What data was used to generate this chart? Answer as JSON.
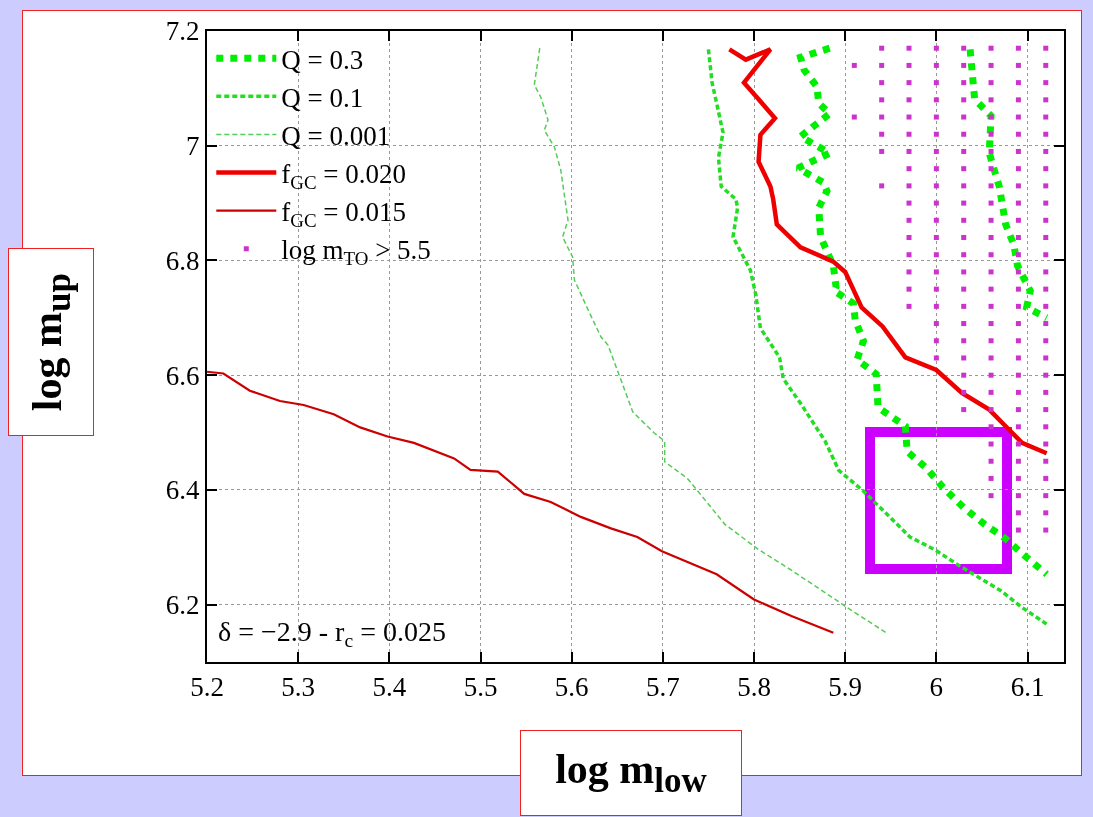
{
  "chart_data": {
    "type": "line",
    "xlabel": "log m$_{low}$",
    "ylabel": "log m$_{up}$",
    "xlim": [
      5.2,
      6.14
    ],
    "ylim": [
      6.1,
      7.2
    ],
    "xticks": [
      5.2,
      5.3,
      5.4,
      5.5,
      5.6,
      5.7,
      5.8,
      5.9,
      6,
      6.1
    ],
    "yticks": [
      6.2,
      6.4,
      6.6,
      6.8,
      7,
      7.2
    ],
    "grid": true,
    "legend": "top left",
    "annotations": [
      "δ = −2.9 - r$_{c}$ = 0.025"
    ],
    "series": [
      {
        "name": "Q = 0.3",
        "color": "#00ee00",
        "line_style": "dotted",
        "x": [
          5.883,
          5.851,
          5.855,
          5.869,
          5.871,
          5.883,
          5.851,
          5.883,
          5.848,
          5.876,
          5.88,
          5.871,
          5.873,
          5.887,
          5.89,
          5.888,
          5.909,
          5.911,
          5.92,
          5.913,
          5.934,
          5.936,
          5.966,
          5.968,
          5.989,
          6.007,
          6.03,
          6.053,
          6.076,
          6.094,
          6.121,
          null,
          6.037,
          6.042,
          6.06,
          6.058,
          6.069,
          6.076,
          6.085,
          6.089,
          6.103,
          6.099,
          6.121
        ],
        "values": [
          7.17,
          7.154,
          7.132,
          7.103,
          7.074,
          7.056,
          7.016,
          6.987,
          6.961,
          6.936,
          6.921,
          6.892,
          6.841,
          6.791,
          6.754,
          6.747,
          6.725,
          6.696,
          6.66,
          6.627,
          6.602,
          6.544,
          6.511,
          6.467,
          6.438,
          6.405,
          6.369,
          6.34,
          6.315,
          6.289,
          6.253,
          null,
          7.168,
          7.081,
          7.052,
          6.987,
          6.929,
          6.863,
          6.827,
          6.791,
          6.747,
          6.718,
          6.7
        ]
      },
      {
        "name": "Q = 0.1",
        "color": "#22dd22",
        "line_style": "dashed",
        "x": [
          5.75,
          5.754,
          5.759,
          5.766,
          5.761,
          5.764,
          5.78,
          5.782,
          5.777,
          5.796,
          5.802,
          5.807,
          5.828,
          5.832,
          5.851,
          5.878,
          5.893,
          5.92,
          5.943,
          5.971,
          5.998,
          6.026,
          6.071,
          6.094,
          6.121
        ],
        "values": [
          7.168,
          7.11,
          7.074,
          7.023,
          6.979,
          6.929,
          6.907,
          6.892,
          6.841,
          6.783,
          6.74,
          6.682,
          6.631,
          6.594,
          6.551,
          6.485,
          6.434,
          6.398,
          6.362,
          6.318,
          6.296,
          6.267,
          6.224,
          6.195,
          6.166
        ]
      },
      {
        "name": "Q = 0.001",
        "color": "#55cc55",
        "line_style": "dashed",
        "x": [
          5.565,
          5.559,
          5.566,
          5.574,
          5.57,
          5.581,
          5.588,
          5.596,
          5.59,
          5.601,
          5.603,
          5.618,
          5.632,
          5.64,
          5.667,
          5.69,
          5.702,
          5.702,
          5.727,
          5.768,
          5.805,
          5.841,
          5.892,
          5.902,
          5.945
        ],
        "values": [
          7.17,
          7.106,
          7.085,
          7.045,
          7.027,
          6.998,
          6.958,
          6.87,
          6.841,
          6.806,
          6.766,
          6.714,
          6.667,
          6.652,
          6.536,
          6.5,
          6.485,
          6.449,
          6.42,
          6.34,
          6.296,
          6.26,
          6.206,
          6.195,
          6.151
        ]
      },
      {
        "name": "f$_{GC}$ = 0.020",
        "color": "#ee0000",
        "line_style": "solid",
        "x": [
          5.773,
          5.791,
          5.818,
          5.789,
          5.805,
          5.823,
          5.807,
          5.805,
          5.818,
          5.821,
          5.825,
          5.851,
          5.887,
          5.9,
          5.918,
          5.941,
          5.966,
          6,
          6.028,
          6.058,
          6.076,
          6.094,
          6.121
        ],
        "values": [
          7.168,
          7.15,
          7.168,
          7.11,
          7.081,
          7.048,
          7.019,
          6.972,
          6.929,
          6.907,
          6.863,
          6.823,
          6.798,
          6.78,
          6.718,
          6.685,
          6.631,
          6.609,
          6.569,
          6.54,
          6.511,
          6.482,
          6.464
        ]
      },
      {
        "name": "f$_{GC}$ = 0.015",
        "color": "#cc0000",
        "line_style": "solid",
        "x": [
          5.2,
          5.218,
          5.247,
          5.28,
          5.306,
          5.339,
          5.368,
          5.398,
          5.427,
          5.471,
          5.489,
          5.519,
          5.548,
          5.577,
          5.61,
          5.643,
          5.672,
          5.699,
          5.759,
          5.8,
          5.841,
          5.887
        ],
        "values": [
          6.606,
          6.603,
          6.573,
          6.555,
          6.548,
          6.532,
          6.509,
          6.493,
          6.482,
          6.455,
          6.435,
          6.432,
          6.393,
          6.379,
          6.353,
          6.333,
          6.318,
          6.293,
          6.253,
          6.209,
          6.18,
          6.151
        ]
      },
      {
        "name": "log m$_{TO}$ > 5.5",
        "type": "scatter",
        "marker": "square",
        "color": "#cc33cc",
        "x": [
          5.91,
          5.91,
          5.94,
          5.94,
          5.94,
          5.94,
          5.94,
          5.94,
          5.94,
          5.94,
          5.97,
          5.97,
          5.97,
          5.97,
          5.97,
          5.97,
          5.97,
          5.97,
          5.97,
          5.97,
          5.97,
          5.97,
          5.97,
          5.97,
          5.97,
          5.97,
          6,
          6,
          6,
          6,
          6,
          6,
          6,
          6,
          6,
          6,
          6,
          6,
          6,
          6,
          6,
          6,
          6,
          6,
          6,
          6.03,
          6.03,
          6.03,
          6.03,
          6.03,
          6.03,
          6.03,
          6.03,
          6.03,
          6.03,
          6.03,
          6.03,
          6.03,
          6.03,
          6.03,
          6.03,
          6.03,
          6.03,
          6.03,
          6.03,
          6.03,
          6.03,
          6.06,
          6.06,
          6.06,
          6.06,
          6.06,
          6.06,
          6.06,
          6.06,
          6.06,
          6.06,
          6.06,
          6.06,
          6.06,
          6.06,
          6.06,
          6.06,
          6.06,
          6.06,
          6.06,
          6.06,
          6.06,
          6.06,
          6.06,
          6.06,
          6.06,
          6.06,
          6.06,
          6.09,
          6.09,
          6.09,
          6.09,
          6.09,
          6.09,
          6.09,
          6.09,
          6.09,
          6.09,
          6.09,
          6.09,
          6.09,
          6.09,
          6.09,
          6.09,
          6.09,
          6.09,
          6.09,
          6.09,
          6.09,
          6.09,
          6.09,
          6.09,
          6.09,
          6.09,
          6.09,
          6.09,
          6.09,
          6.12,
          6.12,
          6.12,
          6.12,
          6.12,
          6.12,
          6.12,
          6.12,
          6.12,
          6.12,
          6.12,
          6.12,
          6.12,
          6.12,
          6.12,
          6.12,
          6.12,
          6.12,
          6.12,
          6.12,
          6.12,
          6.12,
          6.12,
          6.12,
          6.12,
          6.12,
          6.12,
          6.12,
          6.12
        ],
        "values": [
          7.14,
          7.05,
          7.17,
          7.14,
          7.11,
          7.08,
          7.05,
          7.02,
          6.99,
          6.93,
          7.17,
          7.14,
          7.11,
          7.08,
          7.05,
          7.02,
          6.99,
          6.96,
          6.93,
          6.9,
          6.87,
          6.84,
          6.81,
          6.78,
          6.75,
          6.72,
          7.17,
          7.14,
          7.11,
          7.08,
          7.05,
          7.02,
          6.99,
          6.96,
          6.93,
          6.9,
          6.87,
          6.84,
          6.81,
          6.78,
          6.75,
          6.72,
          6.69,
          6.66,
          6.63,
          7.17,
          7.14,
          7.11,
          7.08,
          7.05,
          7.02,
          6.99,
          6.96,
          6.93,
          6.9,
          6.87,
          6.84,
          6.81,
          6.78,
          6.75,
          6.72,
          6.69,
          6.66,
          6.63,
          6.6,
          6.57,
          6.54,
          7.17,
          7.14,
          7.11,
          7.08,
          7.05,
          7.02,
          6.99,
          6.96,
          6.93,
          6.9,
          6.87,
          6.84,
          6.81,
          6.78,
          6.75,
          6.72,
          6.69,
          6.66,
          6.63,
          6.6,
          6.57,
          6.54,
          6.51,
          6.48,
          6.45,
          6.42,
          6.39,
          7.17,
          7.14,
          7.11,
          7.08,
          7.05,
          7.02,
          6.99,
          6.96,
          6.93,
          6.9,
          6.87,
          6.84,
          6.81,
          6.78,
          6.75,
          6.72,
          6.69,
          6.66,
          6.63,
          6.6,
          6.57,
          6.54,
          6.51,
          6.48,
          6.45,
          6.42,
          6.39,
          6.36,
          6.33,
          7.17,
          7.14,
          7.11,
          7.08,
          7.05,
          7.02,
          6.99,
          6.96,
          6.93,
          6.9,
          6.87,
          6.84,
          6.81,
          6.78,
          6.75,
          6.72,
          6.69,
          6.66,
          6.63,
          6.6,
          6.57,
          6.54,
          6.51,
          6.48,
          6.45,
          6.42,
          6.39,
          6.36,
          6.33
        ]
      }
    ]
  }
}
